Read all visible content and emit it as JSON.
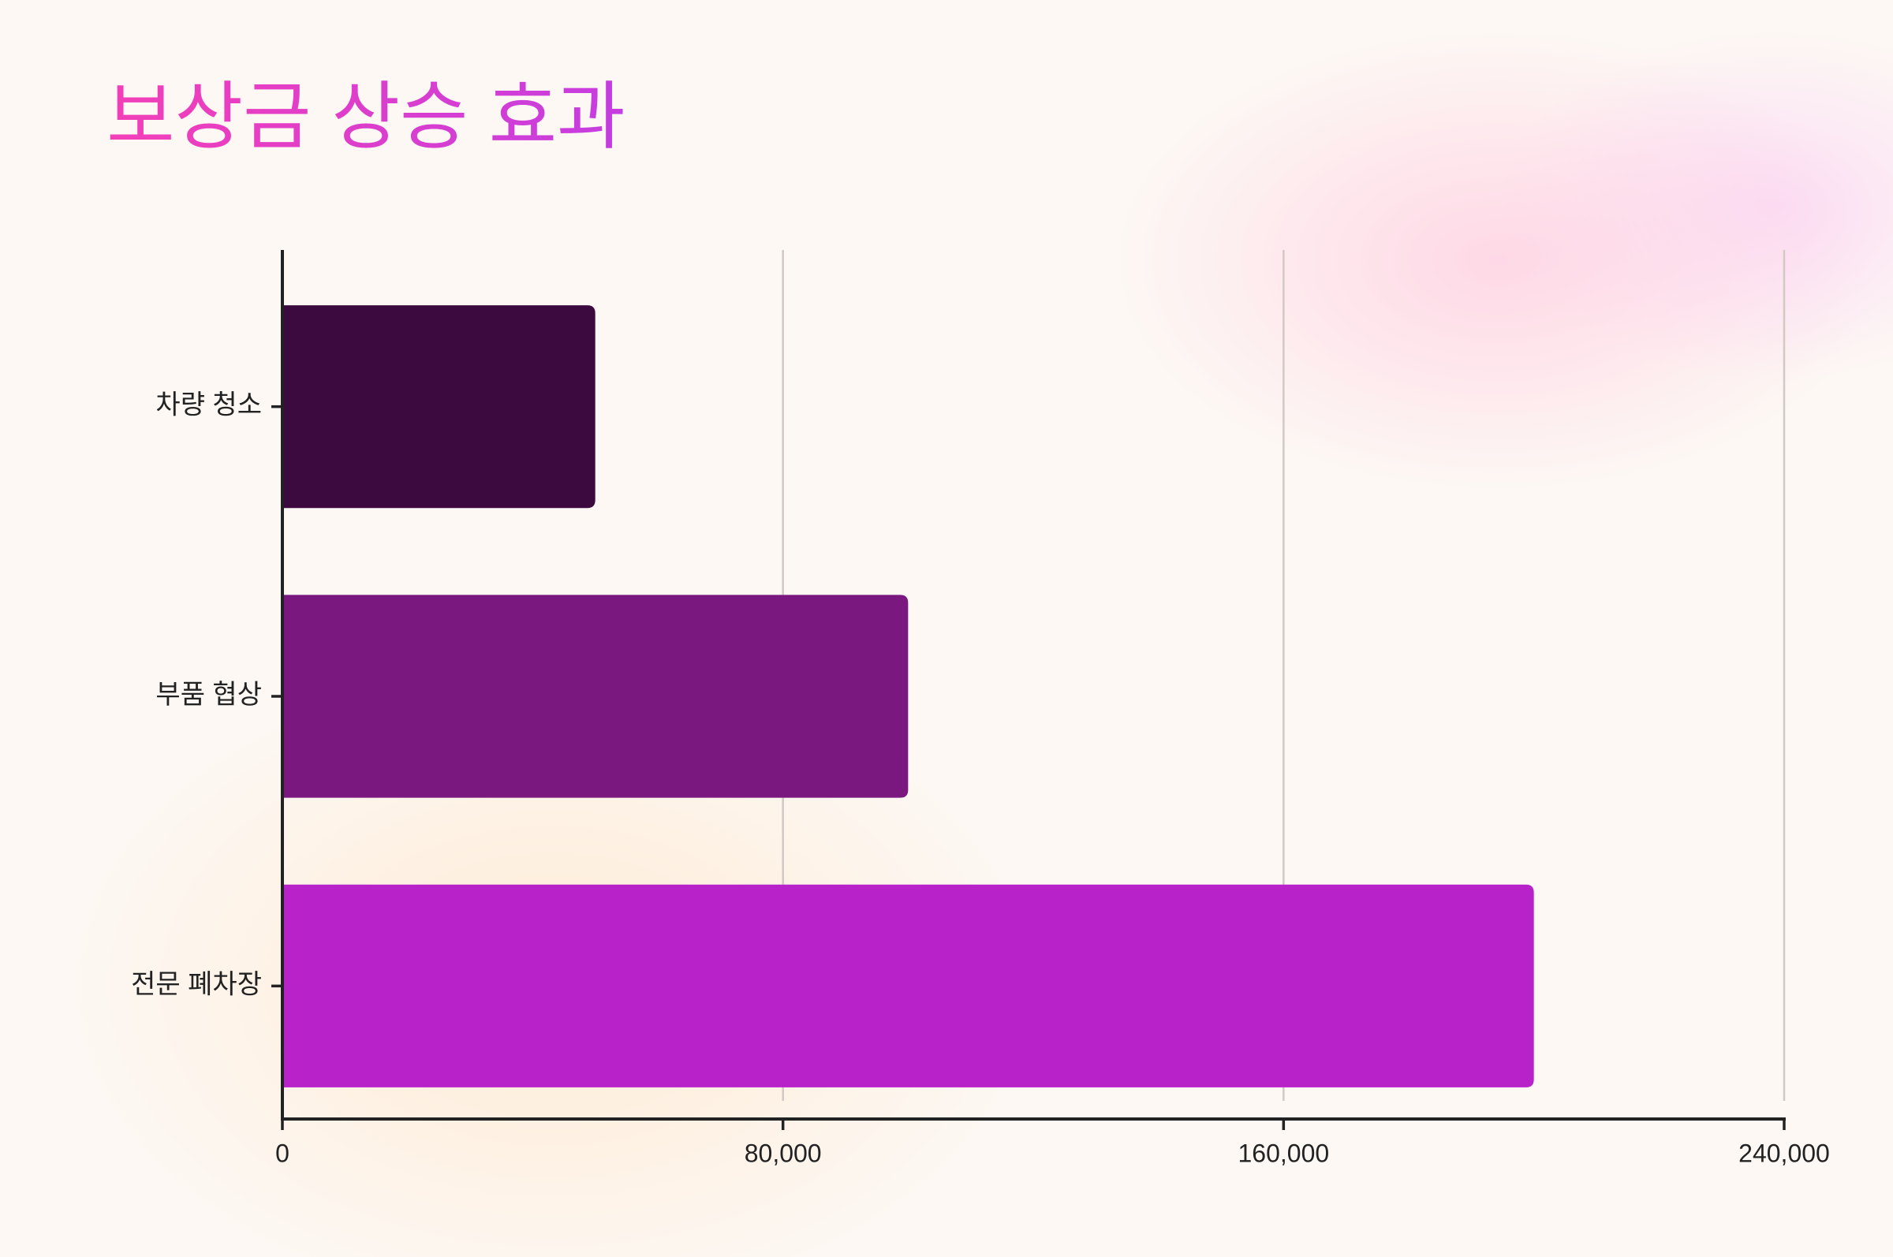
{
  "chart_data": {
    "type": "barh",
    "title": "보상금 상승 효과",
    "categories": [
      "차량 청소",
      "부품 협상",
      "전문 폐차장"
    ],
    "values": [
      50000,
      100000,
      200000
    ],
    "colors": [
      "#3d0a3f",
      "#7a1880",
      "#b822c9"
    ],
    "xlim": [
      0,
      240000
    ],
    "xticks": [
      0,
      {
        "value": 80000,
        "label": "80,000"
      },
      {
        "value": 160000,
        "label": "160,000"
      },
      {
        "value": 240000,
        "label": "240,000"
      }
    ],
    "grid": true
  }
}
